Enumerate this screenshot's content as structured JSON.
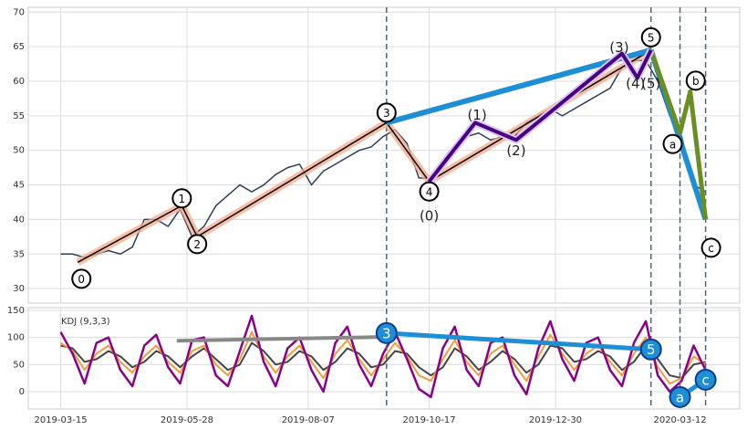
{
  "chart_data": [
    {
      "type": "line",
      "x": [
        "2019-03-15",
        "2019-03-22",
        "2019-03-29",
        "2019-04-05",
        "2019-04-12",
        "2019-04-19",
        "2019-04-26",
        "2019-05-03",
        "2019-05-10",
        "2019-05-17",
        "2019-05-24",
        "2019-05-31",
        "2019-06-07",
        "2019-06-14",
        "2019-06-21",
        "2019-06-28",
        "2019-07-05",
        "2019-07-12",
        "2019-07-19",
        "2019-07-26",
        "2019-08-02",
        "2019-08-09",
        "2019-08-16",
        "2019-08-23",
        "2019-08-30",
        "2019-09-06",
        "2019-09-13",
        "2019-09-20",
        "2019-09-27",
        "2019-10-04",
        "2019-10-11",
        "2019-10-18",
        "2019-10-25",
        "2019-11-01",
        "2019-11-08",
        "2019-11-15",
        "2019-11-22",
        "2019-11-29",
        "2019-12-06",
        "2019-12-13",
        "2019-12-20",
        "2019-12-27",
        "2020-01-03",
        "2020-01-10",
        "2020-01-17",
        "2020-01-24",
        "2020-01-31",
        "2020-02-07",
        "2020-02-14",
        "2020-02-21",
        "2020-02-28",
        "2020-03-06",
        "2020-03-13",
        "2020-03-20",
        "2020-03-27"
      ],
      "series": [
        {
          "color": "#2f3e55",
          "values": [
            35,
            35,
            34.5,
            35,
            35.5,
            35,
            36,
            40,
            40,
            39,
            41.5,
            37.5,
            39,
            42,
            43.5,
            45,
            44,
            45,
            46.5,
            47.5,
            48,
            45,
            47,
            48,
            49,
            50,
            50.5,
            52,
            53,
            51,
            46,
            46,
            48,
            50,
            52,
            52.5,
            51.5,
            52,
            52,
            54,
            55,
            56,
            55,
            56,
            57,
            58,
            59,
            62,
            63,
            63,
            60,
            55,
            52,
            45,
            44
          ]
        }
      ],
      "waves": {
        "labels": [
          "0",
          "1",
          "2",
          "3",
          "4",
          "5",
          "a",
          "b",
          "c"
        ],
        "x": [
          "2019-03-25",
          "2019-05-25",
          "2019-06-03",
          "2019-09-22",
          "2019-10-17",
          "2020-02-24",
          "2020-03-12",
          "2020-03-18",
          "2020-03-27"
        ],
        "values": [
          33.8,
          42,
          37.5,
          54,
          45.5,
          64.5,
          52.5,
          58.5,
          40
        ]
      },
      "subwaves": {
        "labels": [
          "(0)",
          "(1)",
          "(2)",
          "(3)",
          "(4)",
          "(5)"
        ],
        "x": [
          "2019-10-17",
          "2019-11-13",
          "2019-12-07",
          "2020-02-07",
          "2020-02-16",
          "2020-02-24"
        ],
        "values": [
          45.5,
          54,
          51.5,
          64,
          60.5,
          64.5
        ]
      },
      "xlim": [
        "2019-02-24",
        "2020-04-16"
      ],
      "ylim": [
        27.9,
        70.7
      ],
      "yticks": [
        30,
        35,
        40,
        45,
        50,
        55,
        60,
        65,
        70
      ],
      "grid": true
    },
    {
      "type": "line",
      "title": "KDJ (9,3,3)",
      "series": [
        {
          "color": "#444444",
          "values": [
            85,
            80,
            55,
            60,
            75,
            65,
            45,
            55,
            75,
            65,
            45,
            65,
            80,
            60,
            40,
            50,
            90,
            75,
            50,
            55,
            75,
            65,
            40,
            55,
            80,
            70,
            45,
            50,
            75,
            70,
            45,
            30,
            45,
            80,
            65,
            40,
            55,
            75,
            60,
            35,
            50,
            85,
            80,
            55,
            60,
            75,
            65,
            40,
            55,
            85,
            60,
            30,
            25,
            50,
            55
          ]
        },
        {
          "color": "#f39c3c",
          "values": [
            90,
            75,
            40,
            70,
            85,
            55,
            35,
            65,
            85,
            55,
            35,
            75,
            85,
            50,
            30,
            60,
            110,
            65,
            35,
            65,
            85,
            55,
            25,
            70,
            95,
            60,
            30,
            60,
            90,
            65,
            30,
            20,
            60,
            95,
            55,
            30,
            70,
            85,
            50,
            20,
            65,
            105,
            70,
            40,
            70,
            85,
            55,
            30,
            70,
            100,
            45,
            15,
            25,
            65,
            50
          ]
        },
        {
          "color": "#8b008b",
          "values": [
            110,
            70,
            15,
            90,
            100,
            40,
            10,
            85,
            105,
            45,
            15,
            95,
            100,
            30,
            10,
            75,
            140,
            55,
            10,
            80,
            100,
            40,
            0,
            90,
            120,
            50,
            10,
            70,
            110,
            60,
            5,
            -10,
            80,
            120,
            40,
            10,
            90,
            100,
            30,
            -5,
            80,
            130,
            60,
            20,
            90,
            100,
            40,
            10,
            90,
            130,
            30,
            0,
            20,
            85,
            40
          ]
        }
      ],
      "trend": {
        "x": [
          "2019-05-22",
          "2019-09-22"
        ],
        "values": [
          94,
          101
        ]
      },
      "waves": {
        "labels": [
          "3",
          "5",
          "a",
          "c"
        ],
        "x": [
          "2019-09-22",
          "2020-02-24",
          "2020-03-12",
          "2020-03-27"
        ],
        "values": [
          108,
          78,
          -10,
          22
        ]
      },
      "ylim": [
        -32,
        155
      ],
      "yticks": [
        0,
        50,
        100,
        150
      ],
      "grid": true,
      "xticks": [
        "2019-03-15",
        "2019-05-28",
        "2019-08-07",
        "2019-10-17",
        "2019-12-30",
        "2020-03-12"
      ]
    }
  ]
}
